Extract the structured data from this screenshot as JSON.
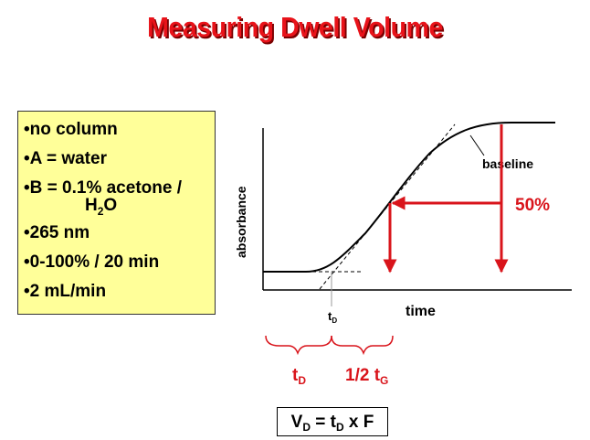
{
  "slide": {
    "title": "Measuring Dwell Volume"
  },
  "conditions": {
    "bullet": "•",
    "items": [
      "no column",
      "A = water",
      "B = 0.1% acetone /"
    ],
    "h2o": {
      "h": "H",
      "sub": "2",
      "o": "O"
    },
    "items_after": [
      "265 nm",
      "0-100% / 20 min",
      "2 mL/min"
    ]
  },
  "graph": {
    "y_axis_label": "absorbance",
    "x_axis_label": "time",
    "baseline_label": "baseline",
    "percent_label": "50%",
    "td_tick": {
      "t": "t",
      "sub": "D"
    }
  },
  "brackets": {
    "td": {
      "t": "t",
      "sub": "D"
    },
    "half_tg": {
      "main": "1/2 t",
      "sub": "G"
    }
  },
  "formula": {
    "v": "V",
    "v_sub": "D",
    "eq": " = t",
    "t_sub": "D",
    "rest": " x F"
  },
  "colors": {
    "title": "#e8131a",
    "accent_red": "#d9141b",
    "note_bg": "#ffff99"
  }
}
